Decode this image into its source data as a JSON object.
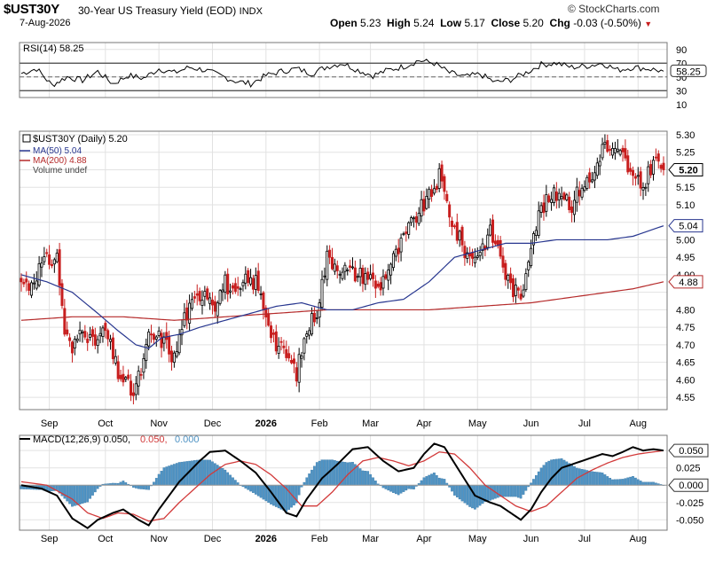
{
  "header": {
    "symbol": "$UST30Y",
    "description": "30-Year US Treasury Yield (EOD)",
    "exchange": "INDX",
    "date": "7-Aug-2026",
    "open_label": "Open",
    "open": "5.23",
    "high_label": "High",
    "high": "5.24",
    "low_label": "Low",
    "low": "5.17",
    "close_label": "Close",
    "close": "5.20",
    "chg_label": "Chg",
    "chg": "-0.03 (-0.50%)",
    "brand": "© StockCharts.com"
  },
  "colors": {
    "up": "#000000",
    "down": "#c81e1e",
    "ma50": "#27368f",
    "ma200": "#b52a2a",
    "macd": "#000000",
    "signal": "#d23a3a",
    "histogram": "#4f93c4",
    "rsi": "#000000",
    "grid": "#e2e2e2"
  },
  "chart_data": [
    {
      "type": "line",
      "panel": "rsi",
      "legend": "RSI(14) 58.25",
      "ylim": [
        20,
        100
      ],
      "yticks": [
        90,
        70,
        50,
        30,
        10
      ],
      "tick_labels": [
        "90",
        "70",
        "50",
        "30",
        "10"
      ],
      "reference_lines": [
        70,
        30
      ],
      "midline": 50,
      "last_value": 58.25,
      "last_label": "58.25",
      "series": [
        {
          "name": "RSI(14)",
          "keypoints_x": [
            0,
            6,
            12,
            18,
            24,
            30,
            36,
            42,
            48,
            54,
            60,
            66,
            72,
            78,
            84,
            90,
            96,
            102,
            108,
            114,
            120,
            126,
            132,
            138,
            144,
            150,
            156,
            162,
            168,
            174,
            180,
            186,
            192,
            198,
            204,
            210,
            216,
            222,
            228,
            234,
            240,
            246,
            252
          ],
          "values": [
            55,
            62,
            38,
            50,
            45,
            58,
            40,
            52,
            48,
            62,
            56,
            64,
            60,
            52,
            44,
            40,
            52,
            58,
            62,
            55,
            65,
            70,
            60,
            52,
            60,
            65,
            74,
            70,
            56,
            50,
            54,
            42,
            46,
            56,
            68,
            70,
            64,
            66,
            70,
            60,
            64,
            62,
            58.25
          ]
        }
      ]
    },
    {
      "type": "candlestick",
      "panel": "price",
      "legend": [
        "$UST30Y (Daily) 5.20",
        "MA(50) 5.04",
        "MA(200) 4.88",
        "Volume undef"
      ],
      "ylim": [
        4.515,
        5.31
      ],
      "yticks": [
        5.3,
        5.25,
        5.2,
        5.15,
        5.1,
        5.05,
        5.0,
        4.95,
        4.9,
        4.85,
        4.8,
        4.75,
        4.7,
        4.65,
        4.6,
        4.55
      ],
      "tick_labels": [
        "5.30",
        "5.25",
        "",
        "5.15",
        "5.10",
        "",
        "5.00",
        "4.95",
        "4.90",
        "",
        "4.80",
        "4.75",
        "4.70",
        "4.65",
        "4.60",
        "4.55"
      ],
      "last_labels": {
        "close": "5.20",
        "ma50": "5.04",
        "ma200": "4.88"
      },
      "close_keypoints": {
        "x": [
          0,
          3,
          8,
          14,
          17,
          20,
          24,
          28,
          33,
          38,
          44,
          48,
          50,
          54,
          57,
          60,
          64,
          68,
          72,
          76,
          80,
          84,
          88,
          92,
          96,
          100,
          104,
          108,
          112,
          116,
          120,
          124,
          128,
          132,
          136,
          140,
          144,
          148,
          152,
          156,
          160,
          164,
          168,
          170,
          174,
          176,
          180,
          184,
          188,
          190,
          192,
          196,
          200,
          204,
          208,
          212,
          216,
          220,
          224,
          228,
          232,
          236,
          240,
          244,
          248,
          252
        ],
        "values": [
          4.88,
          4.87,
          4.93,
          4.95,
          4.74,
          4.68,
          4.76,
          4.7,
          4.74,
          4.62,
          4.56,
          4.65,
          4.72,
          4.72,
          4.7,
          4.66,
          4.78,
          4.82,
          4.86,
          4.82,
          4.88,
          4.83,
          4.88,
          4.88,
          4.79,
          4.7,
          4.67,
          4.62,
          4.74,
          4.8,
          4.95,
          4.93,
          4.91,
          4.9,
          4.9,
          4.86,
          4.92,
          4.97,
          5.03,
          5.08,
          5.12,
          5.18,
          5.08,
          5.03,
          4.97,
          4.95,
          4.97,
          5.02,
          4.96,
          4.9,
          4.87,
          4.83,
          5.0,
          5.09,
          5.12,
          5.14,
          5.1,
          5.16,
          5.17,
          5.27,
          5.25,
          5.24,
          5.17,
          5.15,
          5.23,
          5.2
        ]
      },
      "ma50_keypoints": {
        "x": [
          0,
          10,
          20,
          30,
          38,
          45,
          50,
          55,
          62,
          70,
          80,
          90,
          100,
          110,
          120,
          130,
          135,
          140,
          150,
          160,
          170,
          180,
          190,
          200,
          210,
          220,
          230,
          240,
          252
        ],
        "values": [
          4.9,
          4.88,
          4.85,
          4.79,
          4.74,
          4.7,
          4.69,
          4.72,
          4.73,
          4.75,
          4.77,
          4.79,
          4.81,
          4.82,
          4.8,
          4.8,
          4.81,
          4.82,
          4.83,
          4.88,
          4.95,
          4.97,
          4.99,
          4.99,
          5.0,
          5.0,
          5.0,
          5.01,
          5.04
        ]
      },
      "ma200_keypoints": {
        "x": [
          0,
          20,
          40,
          60,
          80,
          100,
          120,
          140,
          160,
          180,
          200,
          220,
          240,
          252
        ],
        "values": [
          4.77,
          4.78,
          4.78,
          4.77,
          4.78,
          4.79,
          4.8,
          4.8,
          4.8,
          4.81,
          4.82,
          4.84,
          4.86,
          4.88
        ]
      }
    },
    {
      "type": "line",
      "panel": "macd",
      "legend": {
        "macd": "MACD(12,26,9) 0.050,",
        "signal": "0.050,",
        "histogram": "0.000"
      },
      "ylim": [
        -0.065,
        0.072
      ],
      "yticks": [
        0.05,
        0.025,
        0.0,
        -0.025,
        -0.05
      ],
      "tick_labels": [
        "0.050",
        "0.025",
        "0.000",
        "-0.025",
        "-0.050"
      ],
      "last_labels": {
        "macd": "0.050",
        "histogram": "0.000"
      },
      "macd_keypoints": {
        "x": [
          0,
          8,
          14,
          20,
          26,
          30,
          36,
          40,
          46,
          50,
          54,
          58,
          62,
          66,
          70,
          74,
          80,
          86,
          92,
          98,
          104,
          108,
          112,
          118,
          124,
          130,
          136,
          142,
          148,
          154,
          158,
          162,
          166,
          172,
          178,
          184,
          188,
          192,
          196,
          200,
          204,
          208,
          212,
          216,
          220,
          224,
          228,
          232,
          236,
          240,
          244,
          248,
          252
        ],
        "values": [
          0.0,
          -0.005,
          -0.015,
          -0.048,
          -0.062,
          -0.05,
          -0.04,
          -0.035,
          -0.05,
          -0.058,
          -0.035,
          -0.015,
          0.005,
          0.02,
          0.035,
          0.048,
          0.05,
          0.035,
          0.018,
          -0.01,
          -0.04,
          -0.045,
          -0.02,
          0.01,
          0.03,
          0.052,
          0.055,
          0.035,
          0.02,
          0.025,
          0.045,
          0.06,
          0.055,
          0.02,
          -0.015,
          -0.025,
          -0.03,
          -0.04,
          -0.05,
          -0.035,
          -0.01,
          0.01,
          0.025,
          0.03,
          0.035,
          0.04,
          0.045,
          0.042,
          0.048,
          0.055,
          0.05,
          0.052,
          0.05
        ]
      },
      "signal_keypoints": {
        "x": [
          0,
          10,
          20,
          26,
          32,
          38,
          44,
          50,
          56,
          62,
          68,
          74,
          80,
          86,
          92,
          98,
          104,
          110,
          116,
          122,
          128,
          134,
          140,
          146,
          152,
          158,
          164,
          170,
          176,
          182,
          188,
          194,
          200,
          206,
          212,
          218,
          224,
          230,
          236,
          242,
          248,
          252
        ],
        "values": [
          0.005,
          0.0,
          -0.02,
          -0.04,
          -0.048,
          -0.04,
          -0.042,
          -0.052,
          -0.048,
          -0.025,
          -0.005,
          0.015,
          0.03,
          0.035,
          0.03,
          0.015,
          -0.005,
          -0.03,
          -0.03,
          -0.01,
          0.015,
          0.035,
          0.04,
          0.035,
          0.028,
          0.035,
          0.048,
          0.045,
          0.025,
          0.0,
          -0.015,
          -0.03,
          -0.038,
          -0.03,
          -0.01,
          0.01,
          0.022,
          0.032,
          0.04,
          0.045,
          0.048,
          0.05
        ]
      }
    }
  ],
  "x_axis": {
    "month_labels": [
      "Sep",
      "Oct",
      "Nov",
      "Dec",
      "2026",
      "Feb",
      "Mar",
      "Apr",
      "May",
      "Jun",
      "Jul",
      "Aug"
    ],
    "month_bar_index": [
      11,
      33,
      54,
      75,
      96,
      117,
      137,
      158,
      179,
      200,
      221,
      242
    ]
  }
}
